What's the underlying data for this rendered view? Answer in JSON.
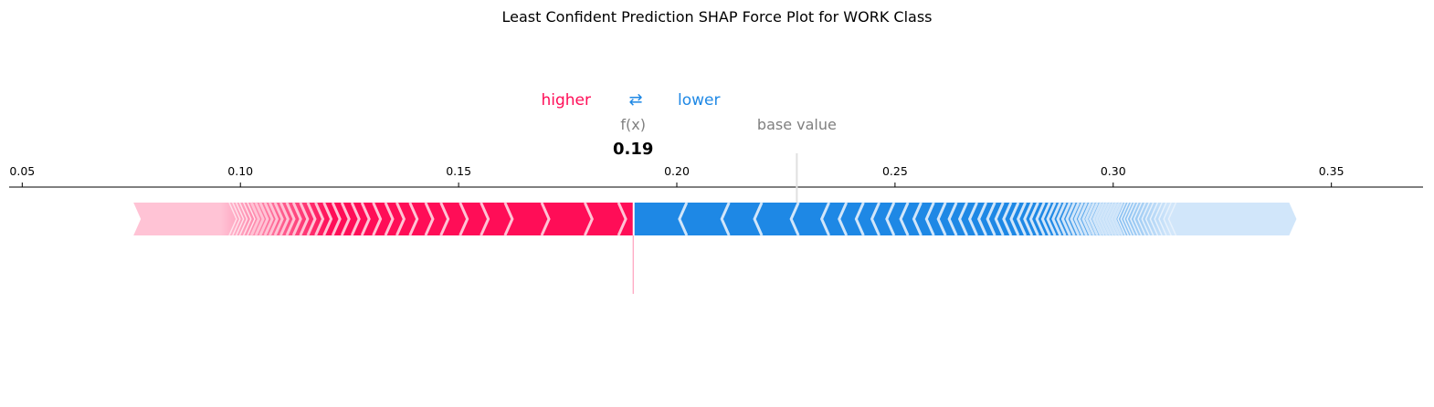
{
  "chart_data": {
    "type": "force",
    "title": "Least Confident Prediction SHAP Force Plot for WORK Class",
    "xlim": [
      0.047,
      0.371
    ],
    "ticks": [
      "0.05",
      "0.10",
      "0.15",
      "0.20",
      "0.25",
      "0.30",
      "0.35"
    ],
    "tick_values": [
      0.05,
      0.1,
      0.15,
      0.2,
      0.25,
      0.3,
      0.35
    ],
    "output_value": 0.19,
    "output_label": "f(x)",
    "output_text": "0.19",
    "base_value": 0.2275,
    "base_label": "base value",
    "legend": {
      "higher": "higher",
      "arrows": "⇄",
      "lower": "lower"
    },
    "positive_range": [
      0.0755,
      0.19
    ],
    "negative_range": [
      0.19,
      0.342
    ],
    "positive_boundaries": [
      0.1883,
      0.1806,
      0.1707,
      0.1623,
      0.1568,
      0.152,
      0.1476,
      0.1441,
      0.1405,
      0.1375,
      0.1349,
      0.1321,
      0.1295,
      0.1272,
      0.1249,
      0.1228,
      0.1208,
      0.1189,
      0.1171,
      0.1154,
      0.1138,
      0.1123,
      0.1109,
      0.1096,
      0.1084,
      0.1073,
      0.1062,
      0.1052,
      0.1042,
      0.1033,
      0.1024,
      0.1015,
      0.1007,
      0.0999,
      0.0991
    ],
    "negative_boundaries": [
      0.2006,
      0.2103,
      0.2178,
      0.2262,
      0.2332,
      0.2372,
      0.2411,
      0.2447,
      0.2481,
      0.2513,
      0.2543,
      0.2572,
      0.2599,
      0.2624,
      0.2648,
      0.2671,
      0.2692,
      0.2712,
      0.2731,
      0.2749,
      0.2766,
      0.2782,
      0.2797,
      0.2811,
      0.2825,
      0.2838,
      0.285,
      0.2862,
      0.2873,
      0.2884,
      0.2894,
      0.2904,
      0.2913,
      0.2922,
      0.2931,
      0.2939,
      0.2947,
      0.2955,
      0.2962,
      0.2969,
      0.2976,
      0.2983,
      0.299,
      0.2997,
      0.3004,
      0.3011,
      0.3018,
      0.3025,
      0.3032,
      0.304,
      0.3048,
      0.3057,
      0.3066,
      0.3075,
      0.3085,
      0.3095,
      0.3105,
      0.3116,
      0.3127
    ],
    "positive_fade_start": 0.0955,
    "negative_fade_start": 0.313,
    "colors": {
      "positive": "#ff0d57",
      "positive_light": "#ffc3d5",
      "negative": "#1e88e5",
      "negative_light": "#d1e6fa",
      "axis": "#000000",
      "base_line": "#e0e0e0",
      "fx_line": "#ff8db0"
    }
  }
}
